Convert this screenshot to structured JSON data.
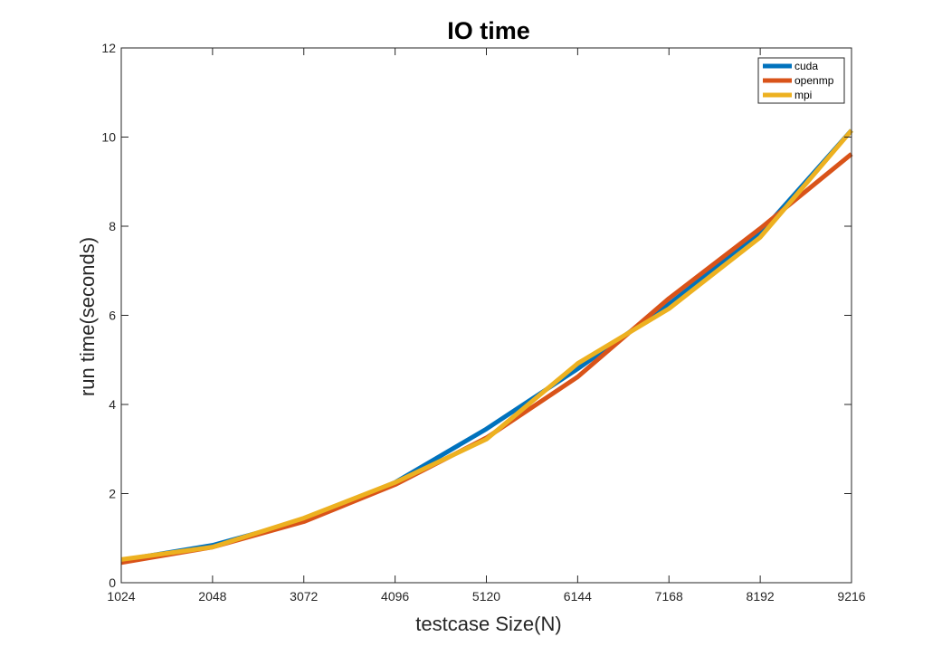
{
  "chart_data": {
    "type": "line",
    "title": "IO time",
    "xlabel": "testcase Size(N)",
    "ylabel": "run time(seconds)",
    "x": [
      1024,
      2048,
      3072,
      4096,
      5120,
      6144,
      7168,
      8192,
      9216
    ],
    "xlim": [
      1024,
      9216
    ],
    "ylim": [
      0,
      12
    ],
    "yticks": [
      0,
      2,
      4,
      6,
      8,
      10,
      12
    ],
    "grid": false,
    "legend_position": "top-right",
    "series": [
      {
        "name": "cuda",
        "color": "#0072BD",
        "values": [
          0.5,
          0.84,
          1.4,
          2.25,
          3.45,
          4.8,
          6.25,
          7.85,
          10.15
        ]
      },
      {
        "name": "openmp",
        "color": "#D95319",
        "values": [
          0.45,
          0.8,
          1.37,
          2.2,
          3.25,
          4.62,
          6.38,
          7.95,
          9.62
        ]
      },
      {
        "name": "mpi",
        "color": "#EDB120",
        "values": [
          0.52,
          0.8,
          1.45,
          2.25,
          3.22,
          4.92,
          6.15,
          7.75,
          10.15
        ]
      }
    ]
  }
}
